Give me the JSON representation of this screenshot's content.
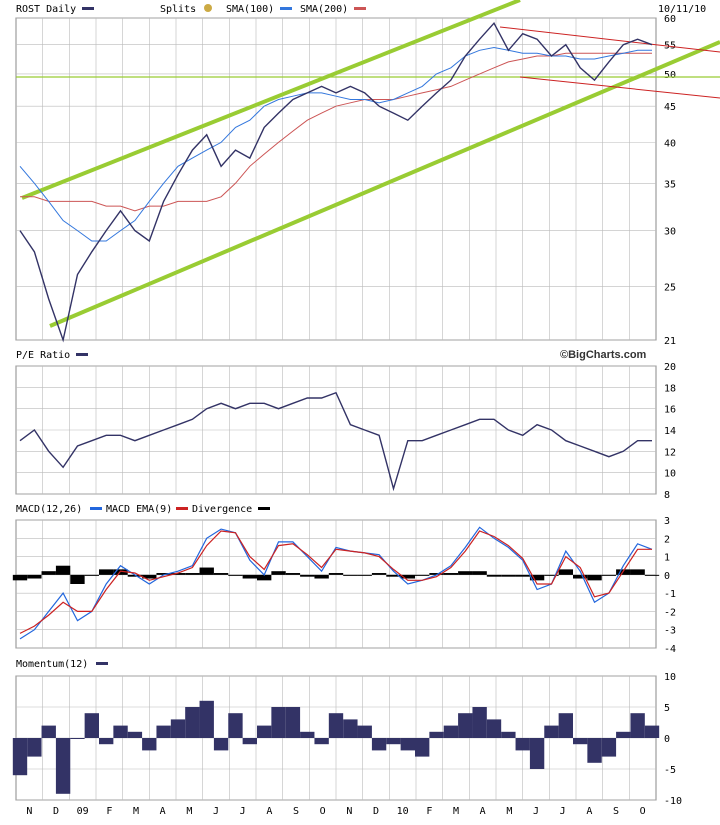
{
  "header": {
    "ticker_label": "ROST Daily",
    "splits_label": "Splits",
    "sma100_label": "SMA(100)",
    "sma200_label": "SMA(200)",
    "date": "10/11/10"
  },
  "watermark": "©BigCharts.com",
  "colors": {
    "price": "#333366",
    "sma100": "#3377dd",
    "sma200": "#cc5555",
    "trend_green": "#99cc33",
    "trend_red": "#cc2222",
    "grid": "#bbbbbb",
    "panel_bg": "#ffffff",
    "gap": "#dddddd",
    "macd": "#2266dd",
    "macd_ema": "#cc2222",
    "divergence": "#000000",
    "momentum": "#333366",
    "splits_icon": "#ccaa44"
  },
  "x_axis": {
    "months": [
      "N",
      "D",
      "09",
      "F",
      "M",
      "A",
      "M",
      "J",
      "J",
      "A",
      "S",
      "O",
      "N",
      "D",
      "10",
      "F",
      "M",
      "A",
      "M",
      "J",
      "J",
      "A",
      "S",
      "O"
    ]
  },
  "chart_data": [
    {
      "name": "price",
      "type": "line",
      "title": "ROST Daily",
      "yscale": "log",
      "ylim": [
        21,
        60
      ],
      "yticks": [
        21,
        25,
        30,
        35,
        40,
        45,
        50,
        55,
        60
      ],
      "series": [
        {
          "name": "ROST Daily",
          "values": [
            30,
            28,
            24,
            21,
            26,
            28,
            30,
            32,
            30,
            29,
            33,
            36,
            39,
            41,
            37,
            39,
            38,
            42,
            44,
            46,
            47,
            48,
            47,
            48,
            47,
            45,
            44,
            43,
            45,
            47,
            49,
            53,
            56,
            59,
            54,
            57,
            56,
            53,
            55,
            51,
            49,
            52,
            55,
            56,
            55
          ]
        },
        {
          "name": "SMA(100)",
          "values": [
            37,
            35,
            33,
            31,
            30,
            29,
            29,
            30,
            31,
            33,
            35,
            37,
            38,
            39,
            40,
            42,
            43,
            45,
            46,
            46.5,
            47,
            47,
            46.5,
            46,
            46,
            45.5,
            46,
            47,
            48,
            50,
            51,
            53,
            54,
            54.5,
            54,
            53.5,
            53.5,
            53,
            53,
            52.5,
            52.5,
            53,
            53.5,
            54,
            54
          ]
        },
        {
          "name": "SMA(200)",
          "values": [
            33.5,
            33.5,
            33,
            33,
            33,
            33,
            32.5,
            32.5,
            32,
            32.5,
            32.5,
            33,
            33,
            33,
            33.5,
            35,
            37,
            38.5,
            40,
            41.5,
            43,
            44,
            45,
            45.5,
            46,
            46,
            46,
            46.5,
            47,
            47.5,
            48,
            49,
            50,
            51,
            52,
            52.5,
            53,
            53,
            53.5,
            53.5,
            53.5,
            53.5,
            53.5,
            53.5,
            53.5
          ]
        }
      ]
    },
    {
      "name": "pe_ratio",
      "type": "line",
      "title": "P/E Ratio",
      "ylim": [
        8,
        20
      ],
      "yticks": [
        8,
        10,
        12,
        14,
        16,
        18,
        20
      ],
      "series": [
        {
          "name": "P/E Ratio",
          "values": [
            13,
            14,
            12,
            10.5,
            12.5,
            13,
            13.5,
            13.5,
            13,
            13.5,
            14,
            14.5,
            15,
            16,
            16.5,
            16,
            16.5,
            16.5,
            16,
            16.5,
            17,
            17,
            17.5,
            14.5,
            14,
            13.5,
            8.5,
            13,
            13,
            13.5,
            14,
            14.5,
            15,
            15,
            14,
            13.5,
            14.5,
            14,
            13,
            12.5,
            12,
            11.5,
            12,
            13,
            13
          ]
        }
      ]
    },
    {
      "name": "macd",
      "type": "line",
      "title": "MACD(12,26)",
      "ylim": [
        -4,
        3
      ],
      "yticks": [
        -4,
        -3,
        -2,
        -1,
        0,
        1,
        2,
        3
      ],
      "series": [
        {
          "name": "MACD(12,26)",
          "values": [
            -3.5,
            -3,
            -2,
            -1,
            -2.5,
            -2,
            -0.5,
            0.5,
            0,
            -0.5,
            0,
            0.2,
            0.5,
            2,
            2.5,
            2.3,
            0.8,
            0,
            1.8,
            1.8,
            1,
            0.2,
            1.5,
            1.3,
            1.2,
            1.1,
            0.2,
            -0.5,
            -0.3,
            0,
            0.5,
            1.5,
            2.6,
            2,
            1.5,
            0.8,
            -0.8,
            -0.5,
            1.3,
            0.2,
            -1.5,
            -1,
            0.5,
            1.7,
            1.4
          ]
        },
        {
          "name": "MACD EMA(9)",
          "values": [
            -3.2,
            -2.8,
            -2.2,
            -1.5,
            -2,
            -2,
            -0.8,
            0.2,
            0.1,
            -0.3,
            -0.1,
            0.1,
            0.4,
            1.6,
            2.4,
            2.3,
            1,
            0.3,
            1.6,
            1.7,
            1.1,
            0.4,
            1.4,
            1.3,
            1.2,
            1,
            0.3,
            -0.3,
            -0.3,
            -0.1,
            0.4,
            1.3,
            2.4,
            2.1,
            1.6,
            0.9,
            -0.5,
            -0.5,
            1,
            0.4,
            -1.2,
            -1,
            0.2,
            1.4,
            1.4
          ]
        },
        {
          "name": "Divergence",
          "values": [
            -0.3,
            -0.2,
            0.2,
            0.5,
            -0.5,
            0,
            0.3,
            0.3,
            -0.1,
            -0.2,
            0.1,
            0.1,
            0.1,
            0.4,
            0.1,
            0,
            -0.2,
            -0.3,
            0.2,
            0.1,
            -0.1,
            -0.2,
            0.1,
            0,
            0,
            0.1,
            -0.1,
            -0.2,
            0,
            0.1,
            0.1,
            0.2,
            0.2,
            -0.1,
            -0.1,
            -0.1,
            -0.3,
            0,
            0.3,
            -0.2,
            -0.3,
            0,
            0.3,
            0.3,
            0
          ]
        }
      ]
    },
    {
      "name": "momentum",
      "type": "area",
      "title": "Momentum(12)",
      "ylim": [
        -10,
        10
      ],
      "yticks": [
        -10,
        -5,
        0,
        5,
        10
      ],
      "series": [
        {
          "name": "Momentum(12)",
          "values": [
            -6,
            -3,
            2,
            -9,
            0,
            4,
            -1,
            2,
            1,
            -2,
            2,
            3,
            5,
            6,
            -2,
            4,
            -1,
            2,
            5,
            5,
            1,
            -1,
            4,
            3,
            2,
            -2,
            -1,
            -2,
            -3,
            1,
            2,
            4,
            5,
            3,
            1,
            -2,
            -5,
            2,
            4,
            -1,
            -4,
            -3,
            1,
            4,
            2
          ]
        }
      ]
    }
  ]
}
